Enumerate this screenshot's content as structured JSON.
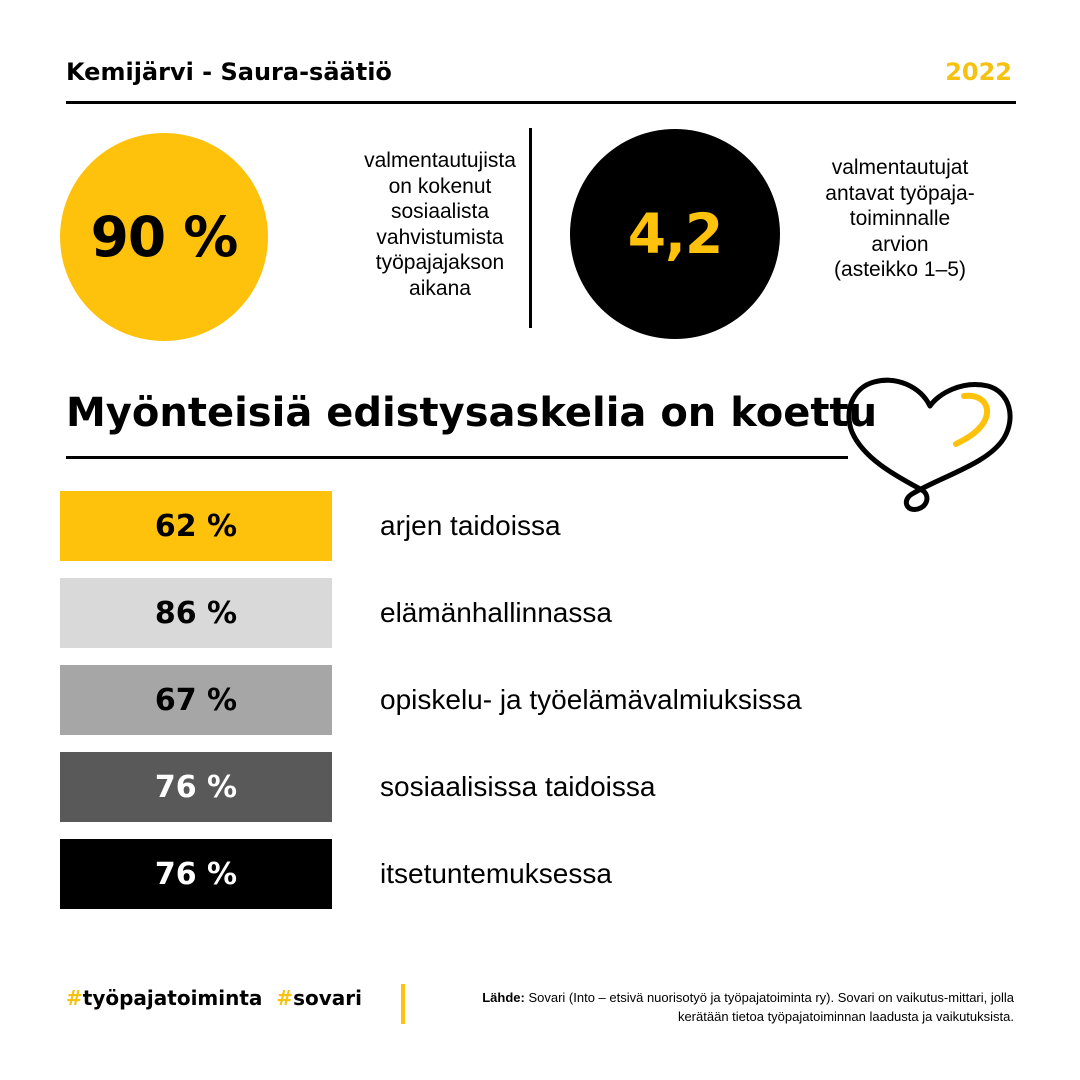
{
  "header": {
    "title": "Kemijärvi - Saura-säätiö",
    "year": "2022"
  },
  "stats": [
    {
      "value": "90 %",
      "text": "valmentautujista\non kokenut\nsosiaalista\nvahvistumista\ntyöpajajakson\naikana"
    },
    {
      "value": "4,2",
      "text": "valmentautujat\nantavat työpaja-\ntoiminnalle\narvion\n(asteikko 1–5)"
    }
  ],
  "section": {
    "title": "Myönteisiä edistysaskelia on koettu"
  },
  "bars": [
    {
      "value": "62 %",
      "label": "arjen taidoissa",
      "color": "#fec20c",
      "text_color": "#000000"
    },
    {
      "value": "86 %",
      "label": "elämänhallinnassa",
      "color": "#d9d9d9",
      "text_color": "#000000"
    },
    {
      "value": "67 %",
      "label": "opiskelu- ja työelämävalmiuksissa",
      "color": "#a6a6a6",
      "text_color": "#000000"
    },
    {
      "value": "76 %",
      "label": "sosiaalisissa taidoissa",
      "color": "#595959",
      "text_color": "#ffffff"
    },
    {
      "value": "76 %",
      "label": "itsetuntemuksessa",
      "color": "#000000",
      "text_color": "#ffffff"
    }
  ],
  "footer": {
    "hashtag1": "työpajatoiminta",
    "hashtag2": "sovari",
    "source_label": "Lähde:",
    "source_text": "Sovari (Into – etsivä nuorisotyö ja työpajatoiminta ry). Sovari on vaikutus-mittari, jolla kerätään tietoa työpajatoiminnan laadusta ja vaikutuksista."
  },
  "colors": {
    "accent": "#fec20c",
    "dark": "#000000"
  },
  "icons": {
    "heart": "heart-icon"
  }
}
